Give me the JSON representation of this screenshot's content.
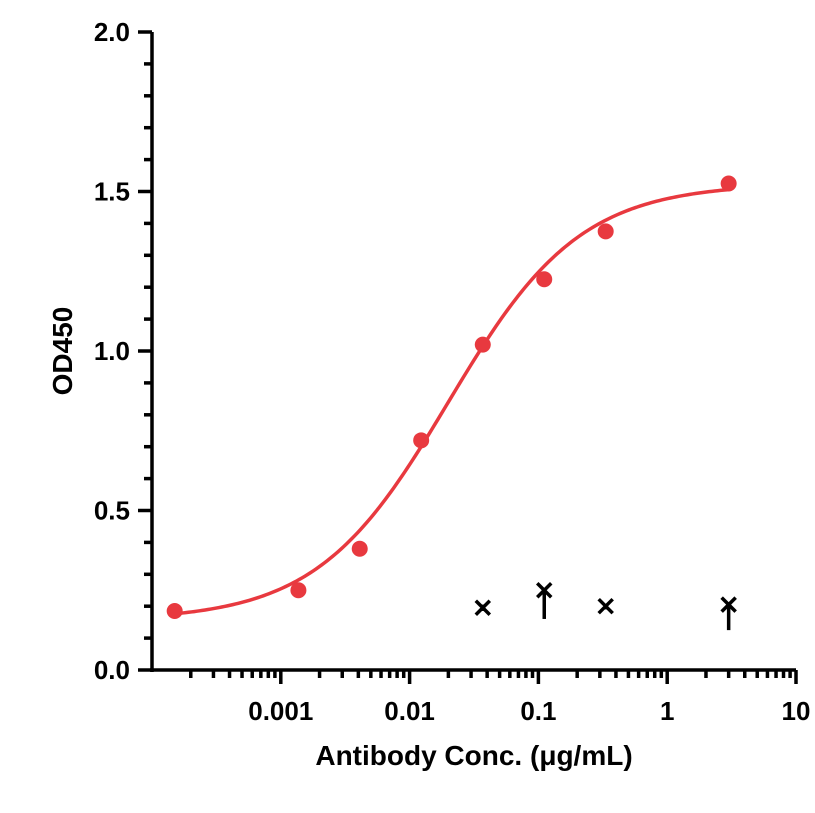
{
  "chart_data": {
    "type": "scatter",
    "title": "",
    "xlabel": "Antibody Conc. (μg/mL)",
    "ylabel": "OD450",
    "x_scale": "log",
    "xlim": [
      0.0001,
      10
    ],
    "ylim": [
      0,
      2.0
    ],
    "x_tick_labels": [
      "0.001",
      "0.01",
      "0.1",
      "1",
      "10"
    ],
    "x_tick_values": [
      0.001,
      0.01,
      0.1,
      1,
      10
    ],
    "y_tick_labels": [
      "0.0",
      "0.5",
      "1.0",
      "1.5",
      "2.0"
    ],
    "y_tick_values": [
      0,
      0.5,
      1.0,
      1.5,
      2.0
    ],
    "grid": false,
    "series": [
      {
        "marker": "circle",
        "color": "#e8393f",
        "x": [
          0.00015,
          0.00137,
          0.0041,
          0.0123,
          0.037,
          0.111,
          0.333,
          3.0
        ],
        "y": [
          0.185,
          0.25,
          0.38,
          0.72,
          1.02,
          1.225,
          1.375,
          1.525
        ],
        "fit": {
          "model": "4PL",
          "bottom": 0.155,
          "top": 1.525,
          "ec50": 0.02,
          "hill": 0.85,
          "color": "#e8393f"
        }
      },
      {
        "marker": "x",
        "color": "#000000",
        "x": [
          0.037,
          0.111,
          0.333,
          3.0
        ],
        "y": [
          0.195,
          0.25,
          0.2,
          0.205
        ],
        "y_err_low": [
          0.01,
          0.09,
          0.01,
          0.08
        ],
        "y_err_high": [
          0.01,
          0.0,
          0.0,
          0.0
        ]
      }
    ]
  }
}
